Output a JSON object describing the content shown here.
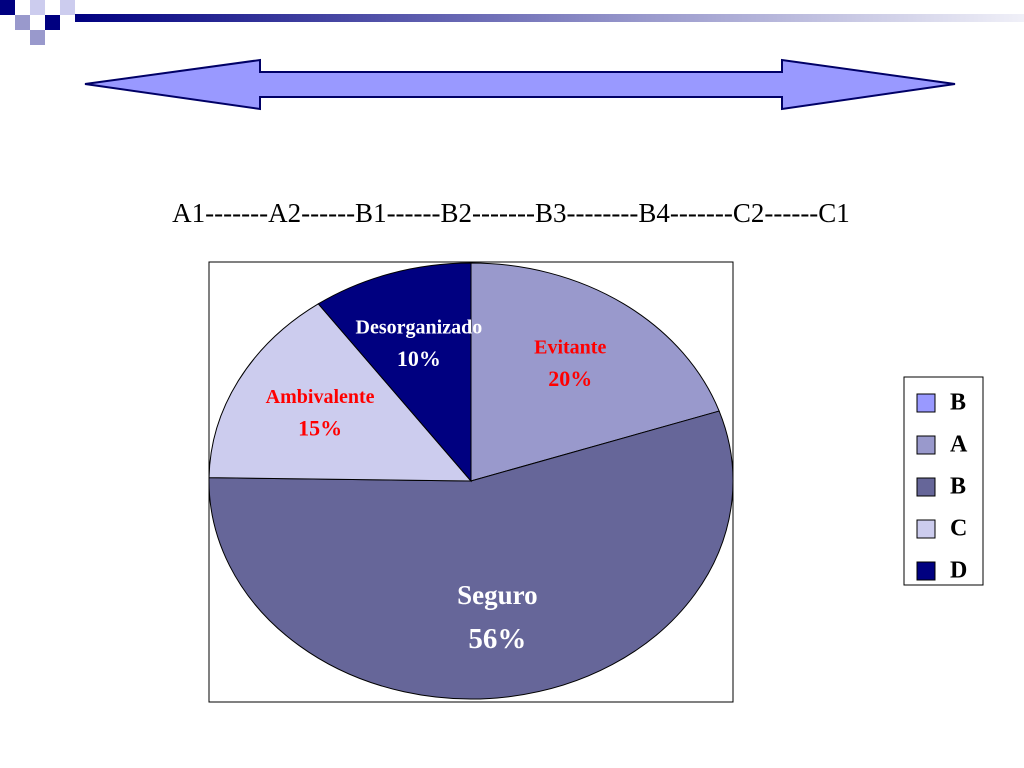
{
  "scale_text": "A1-------A2------B1------B2-------B3--------B4-------C2------C1",
  "chart_data": {
    "type": "pie",
    "categories": [
      "B",
      "A",
      "B",
      "C",
      "D"
    ],
    "labels": [
      null,
      "Evitante",
      "Seguro",
      "Ambivalente",
      "Desorganizado"
    ],
    "values": [
      null,
      20,
      56,
      15,
      10
    ],
    "value_labels": [
      null,
      "20%",
      "56%",
      "15%",
      "10%"
    ],
    "colors": [
      "#9999ff",
      "#9999cc",
      "#666699",
      "#ccccee",
      "#000080"
    ],
    "label_colors": [
      null,
      "#ff0000",
      "#ffffff",
      "#ff0000",
      "#ffffff"
    ],
    "legend": "right"
  }
}
